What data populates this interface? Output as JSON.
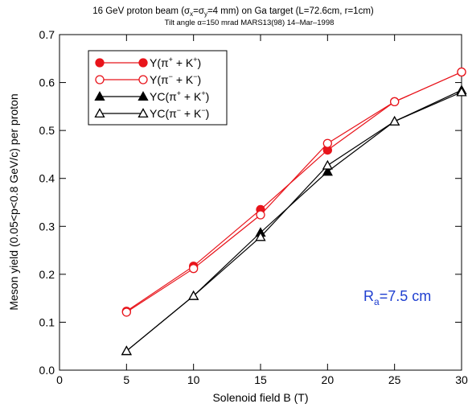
{
  "chart_data": {
    "type": "line",
    "title": "16 GeV proton beam (σx=σy=4 mm) on Ga target (L=72.6cm, r=1cm)",
    "title_parts": {
      "lead": "16 GeV proton beam (σ",
      "sub1": "x",
      "mid": "=σ",
      "sub2": "y",
      "tail": "=4 mm) on Ga target (L=72.6cm, r=1cm)"
    },
    "subtitle": "Tilt angle α=150 mrad    MARS13(98)   14–Mar–1998",
    "xlabel": "Solenoid field B (T)",
    "ylabel": "Meson yield (0.05<p<0.8 GeV/c) per proton",
    "xlim": [
      0,
      30
    ],
    "ylim": [
      0.0,
      0.7
    ],
    "xticks": [
      0,
      5,
      10,
      15,
      20,
      25,
      30
    ],
    "xtick_labels": [
      "0",
      "5",
      "10",
      "15",
      "20",
      "25",
      "30"
    ],
    "yticks": [
      0.0,
      0.1,
      0.2,
      0.3,
      0.4,
      0.5,
      0.6,
      0.7
    ],
    "ytick_labels": [
      "0.0",
      "0.1",
      "0.2",
      "0.3",
      "0.4",
      "0.5",
      "0.6",
      "0.7"
    ],
    "grid": false,
    "legend_position": "top-left",
    "series": [
      {
        "name": "Y(π+ + K+)",
        "label_parts": {
          "base": "Y(π",
          "sup1": "+",
          "mid": " + K",
          "sup2": "+",
          "end": ")"
        },
        "color": "#e8141b",
        "marker": "filled-circle",
        "x": [
          5,
          10,
          15,
          20,
          25,
          30
        ],
        "y": [
          0.123,
          0.217,
          0.335,
          0.459,
          0.56,
          0.622
        ]
      },
      {
        "name": "Y(π− + K−)",
        "label_parts": {
          "base": "Y(π",
          "sup1": "−",
          "mid": " + K",
          "sup2": "−",
          "end": ")"
        },
        "color": "#e8141b",
        "marker": "open-circle",
        "x": [
          5,
          10,
          15,
          20,
          25,
          30
        ],
        "y": [
          0.121,
          0.212,
          0.324,
          0.473,
          0.56,
          0.622
        ]
      },
      {
        "name": "YC(π+ + K+)",
        "label_parts": {
          "base": "YC(π",
          "sup1": "+",
          "mid": " + K",
          "sup2": "+",
          "end": ")"
        },
        "color": "#000000",
        "marker": "filled-triangle",
        "x": [
          5,
          10,
          15,
          20,
          25,
          30
        ],
        "y": [
          0.04,
          0.155,
          0.287,
          0.414,
          0.519,
          0.584
        ]
      },
      {
        "name": "YC(π− + K−)",
        "label_parts": {
          "base": "YC(π",
          "sup1": "−",
          "mid": " + K",
          "sup2": "−",
          "end": ")"
        },
        "color": "#000000",
        "marker": "open-triangle",
        "x": [
          5,
          10,
          15,
          20,
          25,
          30
        ],
        "y": [
          0.04,
          0.155,
          0.278,
          0.427,
          0.519,
          0.58
        ]
      }
    ],
    "annotation": {
      "text": "Ra=7.5 cm",
      "base": "R",
      "sub": "a",
      "rest": "=7.5 cm",
      "color": "#1f3fd0"
    }
  }
}
